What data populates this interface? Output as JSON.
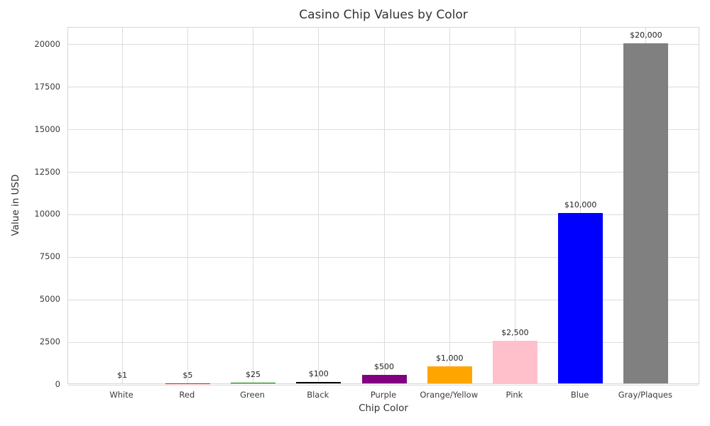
{
  "chart_data": {
    "type": "bar",
    "title": "Casino Chip Values by Color",
    "xlabel": "Chip Color",
    "ylabel": "Value in USD",
    "categories": [
      "White",
      "Red",
      "Green",
      "Black",
      "Purple",
      "Orange/Yellow",
      "Pink",
      "Blue",
      "Gray/Plaques"
    ],
    "values": [
      1,
      5,
      25,
      100,
      500,
      1000,
      2500,
      10000,
      20000
    ],
    "value_labels": [
      "$1",
      "$5",
      "$25",
      "$100",
      "$500",
      "$1,000",
      "$2,500",
      "$10,000",
      "$20,000"
    ],
    "bar_colors": [
      "#ffffff",
      "#ff0000",
      "#008000",
      "#000000",
      "#800080",
      "#ffa500",
      "#ffc0cb",
      "#0000ff",
      "#808080"
    ],
    "yticks": [
      0,
      2500,
      5000,
      7500,
      10000,
      12500,
      15000,
      17500,
      20000
    ],
    "ytick_labels": [
      "0",
      "2500",
      "5000",
      "7500",
      "10000",
      "12500",
      "15000",
      "17500",
      "20000"
    ],
    "ylim": [
      0,
      21000
    ],
    "grid": true,
    "legend": "none",
    "grid_color": "#dcdcdc",
    "background_color": "#ffffff",
    "text_color": "#333333"
  }
}
